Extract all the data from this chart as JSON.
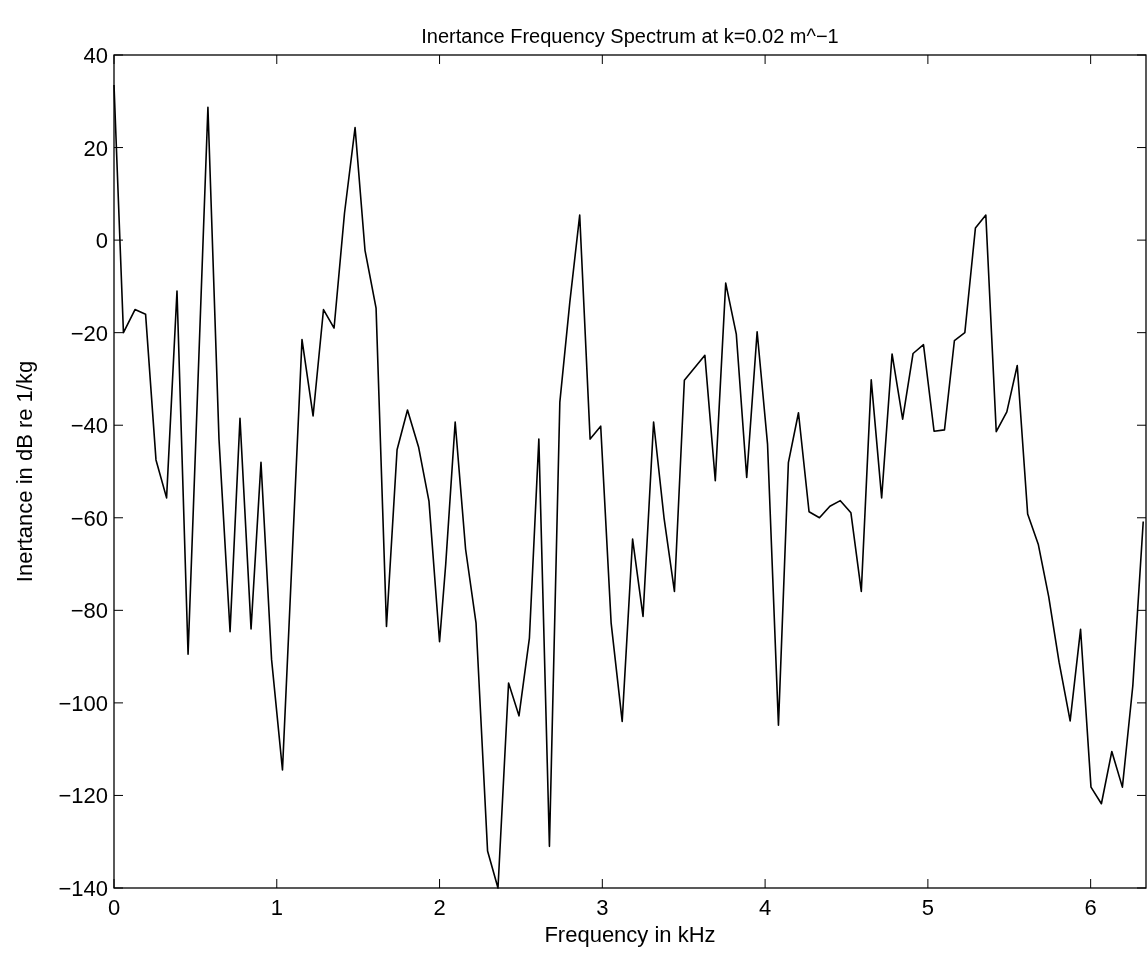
{
  "chart_data": {
    "type": "line",
    "title": "Inertance Frequency Spectrum at k=0.02 m^−1",
    "xlabel": "Frequency in kHz",
    "ylabel": "Inertance in dB re 1/kg",
    "xlim": [
      0,
      6.34
    ],
    "xticks": [
      0,
      1,
      2,
      3,
      4,
      5,
      6
    ],
    "ylim": [
      -140,
      40
    ],
    "yticks": [
      -140,
      -120,
      -100,
      -80,
      -60,
      -40,
      -20,
      0,
      20,
      40
    ],
    "grid": false,
    "marker": "none",
    "line_style": "solid",
    "series": [
      {
        "color": "#000000",
        "x": [
          0,
          0.058,
          0.129,
          0.194,
          0.258,
          0.323,
          0.387,
          0.455,
          0.577,
          0.645,
          0.713,
          0.774,
          0.842,
          0.903,
          0.968,
          1.035,
          1.155,
          1.223,
          1.287,
          1.352,
          1.416,
          1.481,
          1.542,
          1.61,
          1.674,
          1.739,
          1.803,
          1.871,
          1.935,
          2.0,
          2.038,
          2.096,
          2.16,
          2.224,
          2.295,
          2.359,
          2.424,
          2.488,
          2.552,
          2.61,
          2.675,
          2.739,
          2.8,
          2.861,
          2.925,
          2.99,
          3.054,
          3.122,
          3.186,
          3.25,
          3.315,
          3.379,
          3.443,
          3.504,
          3.567,
          3.63,
          3.694,
          3.758,
          3.823,
          3.887,
          3.951,
          4.015,
          4.082,
          4.143,
          4.205,
          4.27,
          4.334,
          4.398,
          4.462,
          4.527,
          4.591,
          4.652,
          4.716,
          4.78,
          4.845,
          4.909,
          4.973,
          5.038,
          5.102,
          5.163,
          5.227,
          5.292,
          5.356,
          5.42,
          5.485,
          5.549,
          5.613,
          5.678,
          5.742,
          5.806,
          5.874,
          5.938,
          6.002,
          6.066,
          6.13,
          6.195,
          6.259,
          6.323
        ],
        "values": [
          33.5,
          -20,
          -15,
          -16,
          -47.5,
          -55.7,
          -11,
          -89.5,
          28.7,
          -43,
          -84.6,
          -38.5,
          -84,
          -48,
          -90.6,
          -114.5,
          -21.5,
          -38,
          -15,
          -19,
          5.8,
          24.3,
          -2.2,
          -14.7,
          -83.5,
          -45.3,
          -36.7,
          -44.7,
          -56.4,
          -86.8,
          -70,
          -39.3,
          -66.8,
          -82.7,
          -132,
          -140,
          -95.7,
          -102.8,
          -86,
          -43,
          -131,
          -35,
          -13.5,
          5.4,
          -43,
          -40.2,
          -82.7,
          -104,
          -64.6,
          -81.3,
          -39.3,
          -60,
          -75.9,
          -30.3,
          -27.6,
          -24.9,
          -52,
          -9.3,
          -20.3,
          -51.3,
          -19.8,
          -44.1,
          -104.8,
          -48.1,
          -37.3,
          -58.7,
          -60,
          -57.5,
          -56.3,
          -58.9,
          -75.9,
          -30.2,
          -55.7,
          -24.6,
          -38.7,
          -24.5,
          -22.6,
          -41.3,
          -41,
          -21.7,
          -20,
          2.6,
          5.4,
          -41.4,
          -37.1,
          -27.1,
          -59.2,
          -65.7,
          -77,
          -91.2,
          -103.9,
          -84.1,
          -118.2,
          -121.8,
          -110.5,
          -118.2,
          -96.3,
          -60.8
        ]
      }
    ]
  }
}
